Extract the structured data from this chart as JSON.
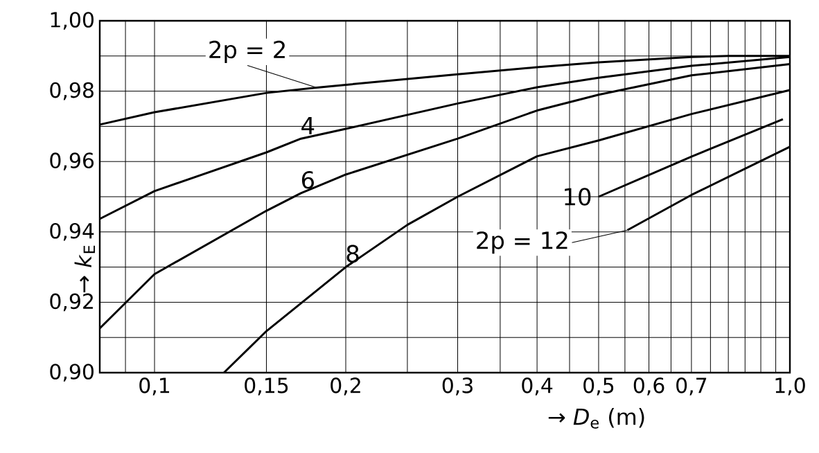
{
  "chart_data": {
    "type": "line",
    "xlabel": "→ *D*$_{e}$ (m)",
    "ylabel": "→ *k*$_{E}$",
    "log": "x",
    "grid": true,
    "marker": "none",
    "line_style": "solid",
    "xlim": [
      0.082,
      1.0
    ],
    "ylim": [
      0.9,
      1.0
    ],
    "xticks": [
      {
        "value": 0.09,
        "label": null
      },
      {
        "value": 0.1,
        "label": "0,1"
      },
      {
        "value": 0.15,
        "label": "0,15"
      },
      {
        "value": 0.2,
        "label": "0,2"
      },
      {
        "value": 0.25,
        "label": null
      },
      {
        "value": 0.3,
        "label": "0,3"
      },
      {
        "value": 0.35,
        "label": null
      },
      {
        "value": 0.4,
        "label": "0,4"
      },
      {
        "value": 0.45,
        "label": null
      },
      {
        "value": 0.5,
        "label": "0,5"
      },
      {
        "value": 0.55,
        "label": null
      },
      {
        "value": 0.6,
        "label": "0,6"
      },
      {
        "value": 0.65,
        "label": null
      },
      {
        "value": 0.7,
        "label": "0,7"
      },
      {
        "value": 0.75,
        "label": null
      },
      {
        "value": 0.8,
        "label": null
      },
      {
        "value": 0.85,
        "label": null
      },
      {
        "value": 0.9,
        "label": null
      },
      {
        "value": 0.95,
        "label": null
      },
      {
        "value": 1.0,
        "label": "1,0"
      }
    ],
    "yticks": [
      {
        "value": 0.9,
        "label": "0,90"
      },
      {
        "value": 0.91,
        "label": null
      },
      {
        "value": 0.92,
        "label": "0,92"
      },
      {
        "value": 0.93,
        "label": null
      },
      {
        "value": 0.94,
        "label": "0,94"
      },
      {
        "value": 0.95,
        "label": null
      },
      {
        "value": 0.96,
        "label": "0,96"
      },
      {
        "value": 0.97,
        "label": null
      },
      {
        "value": 0.98,
        "label": "0,98"
      },
      {
        "value": 0.99,
        "label": null
      },
      {
        "value": 1.0,
        "label": "1,00"
      }
    ],
    "series": [
      {
        "name": "2p = 2",
        "color": "#000000",
        "x": [
          0.082,
          0.1,
          0.15,
          0.18,
          0.2,
          0.3,
          0.4,
          0.5,
          0.7,
          0.8,
          1.0
        ],
        "values": [
          0.9705,
          0.974,
          0.9795,
          0.981,
          0.9818,
          0.9848,
          0.9868,
          0.9882,
          0.9897,
          0.99,
          0.99
        ]
      },
      {
        "name": "4",
        "color": "#000000",
        "x": [
          0.082,
          0.1,
          0.15,
          0.17,
          0.2,
          0.3,
          0.4,
          0.5,
          0.7,
          1.0
        ],
        "values": [
          0.9437,
          0.9516,
          0.9626,
          0.9665,
          0.9693,
          0.9765,
          0.9811,
          0.9838,
          0.9872,
          0.9897
        ]
      },
      {
        "name": "6",
        "color": "#000000",
        "x": [
          0.082,
          0.1,
          0.15,
          0.17,
          0.2,
          0.3,
          0.4,
          0.5,
          0.7,
          1.0
        ],
        "values": [
          0.9126,
          0.928,
          0.946,
          0.951,
          0.9563,
          0.9665,
          0.9745,
          0.979,
          0.9845,
          0.9877
        ]
      },
      {
        "name": "8",
        "color": "#000000",
        "x": [
          0.1286,
          0.15,
          0.2,
          0.25,
          0.3,
          0.4,
          0.5,
          0.7,
          1.0
        ],
        "values": [
          0.9,
          0.9118,
          0.93,
          0.942,
          0.95,
          0.9615,
          0.966,
          0.9735,
          0.9803
        ]
      },
      {
        "name": "10",
        "color": "#000000",
        "x": [
          0.5,
          0.7,
          0.975
        ],
        "values": [
          0.95,
          0.9614,
          0.972
        ]
      },
      {
        "name": "2p = 12",
        "color": "#000000",
        "x": [
          0.555,
          0.7,
          1.0
        ],
        "values": [
          0.9405,
          0.9505,
          0.9642
        ]
      }
    ]
  }
}
